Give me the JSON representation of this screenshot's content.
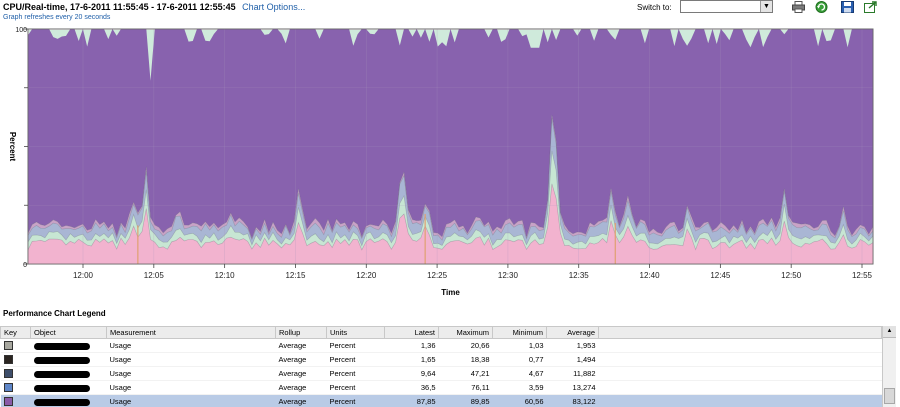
{
  "header": {
    "title": "CPU/Real-time, 17-6-2011 11:55:45 - 17-6-2011 12:55:45",
    "chart_options": "Chart Options...",
    "refresh_note": "Graph refreshes every 20 seconds",
    "switch_label": "Switch to:",
    "switch_value": "",
    "tools": [
      "printer-icon",
      "refresh-icon",
      "save-icon",
      "export-icon"
    ]
  },
  "chart_data": {
    "type": "area",
    "stacked": true,
    "xlabel": "Time",
    "ylabel": "Percent",
    "ylim": [
      0,
      100
    ],
    "y_ticks": [
      "0",
      "",
      "",
      "",
      "100"
    ],
    "x_ticks": [
      "12:00",
      "12:05",
      "12:10",
      "12:15",
      "12:20",
      "12:25",
      "12:30",
      "12:35",
      "12:40",
      "12:45",
      "12:50",
      "12:55"
    ],
    "grid": true,
    "series": [
      {
        "color": "#f2b3cf"
      },
      {
        "color": "#c7e6d3"
      },
      {
        "color": "#a9b6d4"
      },
      {
        "color": "#c9a3c7"
      },
      {
        "color": "#8862ae"
      }
    ]
  },
  "legend": {
    "title": "Performance Chart Legend",
    "columns": [
      "Key",
      "Object",
      "Measurement",
      "Rollup",
      "Units",
      "Latest",
      "Maximum",
      "Minimum",
      "Average"
    ],
    "rows": [
      {
        "key_color": "#a8a8a0",
        "measurement": "Usage",
        "rollup": "Average",
        "units": "Percent",
        "latest": "1,36",
        "maximum": "20,66",
        "minimum": "1,03",
        "average": "1,953"
      },
      {
        "key_color": "#2a2420",
        "measurement": "Usage",
        "rollup": "Average",
        "units": "Percent",
        "latest": "1,65",
        "maximum": "18,38",
        "minimum": "0,77",
        "average": "1,494"
      },
      {
        "key_color": "#3e4e6a",
        "measurement": "Usage",
        "rollup": "Average",
        "units": "Percent",
        "latest": "9,64",
        "maximum": "47,21",
        "minimum": "4,67",
        "average": "11,882"
      },
      {
        "key_color": "#5e86c8",
        "measurement": "Usage",
        "rollup": "Average",
        "units": "Percent",
        "latest": "36,5",
        "maximum": "76,11",
        "minimum": "3,59",
        "average": "13,274"
      },
      {
        "key_color": "#8a5aa8",
        "measurement": "Usage",
        "rollup": "Average",
        "units": "Percent",
        "latest": "87,85",
        "maximum": "89,85",
        "minimum": "60,56",
        "average": "83,122",
        "selected": true
      }
    ]
  }
}
